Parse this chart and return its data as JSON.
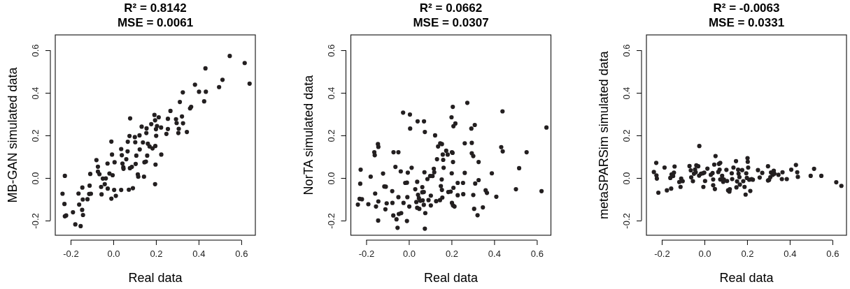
{
  "chart_data": [
    {
      "type": "scatter",
      "title": "R² = 0.8142",
      "subtitle": "MSE = 0.0061",
      "xlabel": "Real data",
      "ylabel": "MB-GAN simulated data",
      "xlim": [
        -0.272,
        0.666
      ],
      "ylim": [
        -0.269,
        0.672
      ],
      "xticks": [
        {
          "value": -0.2,
          "label": "-0.2"
        },
        {
          "value": 0,
          "label": "0.0"
        },
        {
          "value": 0.2,
          "label": "0.2"
        },
        {
          "value": 0.4,
          "label": "0.4"
        },
        {
          "value": 0.6,
          "label": "0.6"
        }
      ],
      "yticks": [
        {
          "value": -0.2,
          "label": "-0.2"
        },
        {
          "value": 0,
          "label": "0.0"
        },
        {
          "value": 0.2,
          "label": "0.2"
        },
        {
          "value": 0.4,
          "label": "0.4"
        },
        {
          "value": 0.6,
          "label": "0.6"
        }
      ],
      "marker": "circle",
      "color": "#231f20",
      "x": [
        -0.238,
        -0.227,
        -0.229,
        -0.227,
        -0.221,
        -0.189,
        -0.178,
        -0.153,
        -0.16,
        -0.163,
        -0.145,
        -0.143,
        -0.146,
        -0.142,
        -0.121,
        -0.111,
        -0.113,
        -0.105,
        -0.108,
        -0.079,
        -0.072,
        -0.072,
        -0.065,
        -0.057,
        -0.055,
        -0.049,
        -0.04,
        -0.035,
        -0.027,
        -0.026,
        -0.018,
        -0.009,
        -0.006,
        -0.003,
        -0.009,
        0.004,
        0.006,
        0.012,
        0.037,
        0.04,
        0.037,
        0.043,
        0.047,
        0.048,
        0.061,
        0.067,
        0.068,
        0.073,
        0.076,
        0.078,
        0.079,
        0.087,
        0.092,
        0.101,
        0.103,
        0.105,
        0.108,
        0.115,
        0.117,
        0.123,
        0.124,
        0.133,
        0.139,
        0.144,
        0.146,
        0.153,
        0.155,
        0.156,
        0.159,
        0.162,
        0.17,
        0.178,
        0.184,
        0.193,
        0.196,
        0.197,
        0.198,
        0.196,
        0.2,
        0.201,
        0.205,
        0.213,
        0.224,
        0.225,
        0.249,
        0.256,
        0.256,
        0.268,
        0.294,
        0.297,
        0.305,
        0.307,
        0.322,
        0.327,
        0.312,
        0.326,
        0.345,
        0.36,
        0.365,
        0.383,
        0.402,
        0.426,
        0.432,
        0.434,
        0.496,
        0.512,
        0.546,
        0.616,
        0.639
      ],
      "values": [
        -0.074,
        0.01,
        -0.122,
        -0.18,
        -0.176,
        -0.161,
        -0.218,
        -0.226,
        -0.125,
        -0.073,
        -0.045,
        -0.101,
        -0.15,
        -0.174,
        -0.1,
        -0.036,
        -0.075,
        -0.074,
        0.019,
        0.084,
        0.053,
        0.03,
        0.018,
        -0.042,
        -0.077,
        -0.003,
        -0.029,
        -0.002,
        0.068,
        -0.05,
        0.021,
        0.171,
        0.11,
        0.013,
        -0.097,
        -0.056,
        0.074,
        -0.084,
        0.136,
        0.107,
        -0.056,
        0.068,
        0.05,
        0.043,
        0.088,
        0.125,
        0.17,
        -0.055,
        0.197,
        0.046,
        0.28,
        0.052,
        -0.048,
        0.192,
        0.168,
        0.066,
        0.105,
        0.017,
        0.006,
        0.2,
        0.134,
        0.241,
        0.167,
        0.006,
        0.074,
        0.077,
        0.211,
        0.233,
        0.105,
        0.161,
        0.148,
        0.253,
        0.139,
        0.296,
        0.271,
        0.15,
        0.063,
        -0.029,
        0.229,
        0.198,
        0.244,
        0.285,
        0.237,
        0.11,
        0.207,
        0.23,
        0.278,
        0.315,
        0.276,
        0.258,
        0.211,
        0.231,
        0.289,
        0.257,
        0.357,
        0.402,
        0.216,
        0.327,
        0.334,
        0.438,
        0.405,
        0.36,
        0.515,
        0.405,
        0.427,
        0.461,
        0.573,
        0.54,
        0.443
      ]
    },
    {
      "type": "scatter",
      "title": "R² = 0.0662",
      "subtitle": "MSE = 0.0307",
      "xlabel": "Real data",
      "ylabel": "NorTA simulated data",
      "xlim": [
        -0.272,
        0.666
      ],
      "ylim": [
        -0.269,
        0.672
      ],
      "xticks": [
        {
          "value": -0.2,
          "label": "-0.2"
        },
        {
          "value": 0,
          "label": "0.0"
        },
        {
          "value": 0.2,
          "label": "0.2"
        },
        {
          "value": 0.4,
          "label": "0.4"
        },
        {
          "value": 0.6,
          "label": "0.6"
        }
      ],
      "yticks": [
        {
          "value": -0.2,
          "label": "-0.2"
        },
        {
          "value": 0,
          "label": "0.0"
        },
        {
          "value": 0.2,
          "label": "0.2"
        },
        {
          "value": 0.4,
          "label": "0.4"
        },
        {
          "value": 0.6,
          "label": "0.6"
        }
      ],
      "marker": "circle",
      "color": "#231f20",
      "x": [
        -0.239,
        -0.228,
        -0.226,
        -0.231,
        -0.22,
        -0.19,
        -0.179,
        -0.162,
        -0.16,
        -0.158,
        -0.154,
        -0.145,
        -0.143,
        -0.144,
        -0.143,
        -0.121,
        -0.115,
        -0.108,
        -0.11,
        -0.104,
        -0.078,
        -0.077,
        -0.073,
        -0.072,
        -0.049,
        -0.063,
        -0.058,
        -0.053,
        -0.047,
        -0.036,
        -0.049,
        -0.038,
        -0.027,
        -0.025,
        -0.017,
        -0.009,
        -0.009,
        -0.007,
        -0.005,
        0.002,
        0.005,
        0.006,
        0.013,
        0.03,
        0.035,
        0.039,
        0.039,
        0.041,
        0.043,
        0.047,
        0.049,
        0.054,
        0.063,
        0.063,
        0.065,
        0.07,
        0.07,
        0.071,
        0.073,
        0.075,
        0.077,
        0.075,
        0.087,
        0.092,
        0.1,
        0.111,
        0.103,
        0.103,
        0.117,
        0.119,
        0.123,
        0.128,
        0.132,
        0.137,
        0.147,
        0.155,
        0.146,
        0.15,
        0.154,
        0.155,
        0.157,
        0.159,
        0.161,
        0.163,
        0.175,
        0.182,
        0.185,
        0.196,
        0.2,
        0.201,
        0.202,
        0.205,
        0.206,
        0.207,
        0.202,
        0.207,
        0.214,
        0.209,
        0.218,
        0.209,
        0.229,
        0.229,
        0.254,
        0.255,
        0.262,
        0.262,
        0.274,
        0.293,
        0.309,
        0.295,
        0.295,
        0.302,
        0.302,
        0.306,
        0.311,
        0.322,
        0.327,
        0.327,
        0.347,
        0.36,
        0.366,
        0.389,
        0.41,
        0.433,
        0.439,
        0.44,
        0.502,
        0.517,
        0.552,
        0.622,
        0.645
      ],
      "values": [
        -0.125,
        -0.027,
        0.039,
        -0.098,
        -0.1,
        -0.123,
        0.006,
        0.121,
        0.107,
        -0.073,
        -0.134,
        0.159,
        0.146,
        -0.2,
        -0.11,
        0.021,
        -0.04,
        -0.041,
        -0.147,
        -0.119,
        -0.062,
        -0.117,
        -0.176,
        0.121,
        0.121,
        0.052,
        -0.194,
        -0.234,
        -0.169,
        -0.165,
        -0.09,
        0.031,
        0.307,
        -0.117,
        -0.023,
        -0.022,
        -0.202,
        -0.09,
        0.025,
        -0.134,
        0.298,
        0.232,
        0.048,
        -0.053,
        -0.113,
        -0.14,
        -0.018,
        0.266,
        -0.079,
        -0.095,
        -0.145,
        -0.107,
        -0.043,
        -0.067,
        -0.105,
        -0.066,
        -0.126,
        0.266,
        0.027,
        0.216,
        -0.165,
        -0.238,
        -0.005,
        -0.104,
        0.009,
        0.009,
        -0.083,
        -0.129,
        0.043,
        0.027,
        0.2,
        -0.109,
        0.088,
        0.148,
        0.163,
        0.159,
        -0.104,
        -0.038,
        -0.007,
        -0.056,
        -0.092,
        0.11,
        0.085,
        0.048,
        0.128,
        0.11,
        -0.066,
        -0.064,
        0.285,
        0.022,
        0.121,
        0.118,
        0.334,
        0.075,
        -0.117,
        -0.129,
        -0.134,
        0.243,
        0.256,
        -0.046,
        -0.023,
        -0.081,
        -0.023,
        -0.076,
        0.024,
        0.163,
        0.353,
        0.232,
        0.249,
        0.165,
        0.116,
        0.103,
        -0.08,
        -0.145,
        -0.026,
        -0.175,
        -0.01,
        0.075,
        -0.138,
        -0.058,
        -0.07,
        0.022,
        -0.088,
        0.145,
        0.313,
        0.125,
        -0.053,
        0.046,
        0.121,
        -0.062,
        0.237
      ]
    },
    {
      "type": "scatter",
      "title": "R² = -0.0063",
      "subtitle": "MSE = 0.0331",
      "xlabel": "Real data",
      "ylabel": "metaSPARSim simulated data",
      "xlim": [
        -0.272,
        0.666
      ],
      "ylim": [
        -0.269,
        0.672
      ],
      "xticks": [
        {
          "value": -0.2,
          "label": "-0.2"
        },
        {
          "value": 0,
          "label": "0.0"
        },
        {
          "value": 0.2,
          "label": "0.2"
        },
        {
          "value": 0.4,
          "label": "0.4"
        },
        {
          "value": 0.6,
          "label": "0.6"
        }
      ],
      "yticks": [
        {
          "value": -0.2,
          "label": "-0.2"
        },
        {
          "value": 0,
          "label": "0.0"
        },
        {
          "value": 0.2,
          "label": "0.2"
        },
        {
          "value": 0.4,
          "label": "0.4"
        },
        {
          "value": 0.6,
          "label": "0.6"
        }
      ],
      "marker": "circle",
      "color": "#231f20",
      "x": [
        -0.237,
        -0.226,
        -0.225,
        -0.223,
        -0.216,
        -0.187,
        -0.176,
        -0.156,
        -0.16,
        -0.154,
        -0.147,
        -0.143,
        -0.14,
        -0.118,
        -0.112,
        -0.109,
        -0.102,
        -0.07,
        -0.064,
        -0.062,
        -0.054,
        -0.049,
        -0.044,
        -0.038,
        -0.029,
        -0.024,
        -0.041,
        -0.025,
        -0.016,
        -0.008,
        -0.001,
        -0.005,
        0.003,
        0.014,
        0.03,
        0.038,
        0.041,
        0.041,
        0.046,
        0.052,
        0.049,
        0.065,
        0.068,
        0.074,
        0.071,
        0.074,
        0.083,
        0.088,
        0.091,
        0.103,
        0.106,
        0.111,
        0.117,
        0.119,
        0.128,
        0.13,
        0.136,
        0.148,
        0.15,
        0.153,
        0.158,
        0.16,
        0.164,
        0.166,
        0.177,
        0.182,
        0.188,
        0.193,
        0.196,
        0.199,
        0.202,
        0.203,
        0.205,
        0.21,
        0.215,
        0.221,
        0.227,
        0.251,
        0.259,
        0.271,
        0.298,
        0.298,
        0.303,
        0.309,
        0.312,
        0.32,
        0.325,
        0.328,
        0.347,
        0.363,
        0.366,
        0.386,
        0.407,
        0.429,
        0.435,
        0.438,
        0.498,
        0.514,
        0.548,
        0.618,
        0.642
      ],
      "values": [
        0.028,
        0.071,
        0.012,
        -0.003,
        -0.069,
        0.049,
        -0.058,
        -0.05,
        0.0,
        0.017,
        0.009,
        0.025,
        0.054,
        -0.019,
        -0.042,
        -0.003,
        -0.015,
        0.056,
        0.036,
        0.003,
        -0.015,
        0.02,
        0.04,
        0.059,
        0.055,
        0.15,
        0.027,
        0.011,
        0.02,
        0.022,
        0.025,
        -0.042,
        -0.014,
        0.044,
        0.015,
        0.023,
        -0.007,
        -0.034,
        0.063,
        0.103,
        -0.052,
        0.028,
        0.066,
        0.071,
        0.039,
        -0.007,
        0.01,
        -0.018,
        -0.007,
        0.038,
        -0.014,
        -0.058,
        -0.064,
        -0.053,
        0.022,
        -0.005,
        0.049,
        0.079,
        -0.044,
        -0.016,
        0.039,
        0.02,
        0.004,
        -0.031,
        0.037,
        -0.015,
        -0.042,
        -0.078,
        0.022,
        0.0,
        0.093,
        0.076,
        0.049,
        -0.008,
        -0.061,
        -0.005,
        -0.008,
        0.037,
        0.002,
        0.024,
        0.055,
        -0.012,
        -0.009,
        0.004,
        0.026,
        0.015,
        0.034,
        0.02,
        0.015,
        -0.005,
        0.027,
        -0.005,
        0.039,
        0.061,
        0.027,
        0.005,
        0.01,
        0.043,
        0.01,
        -0.02,
        -0.037
      ]
    }
  ]
}
